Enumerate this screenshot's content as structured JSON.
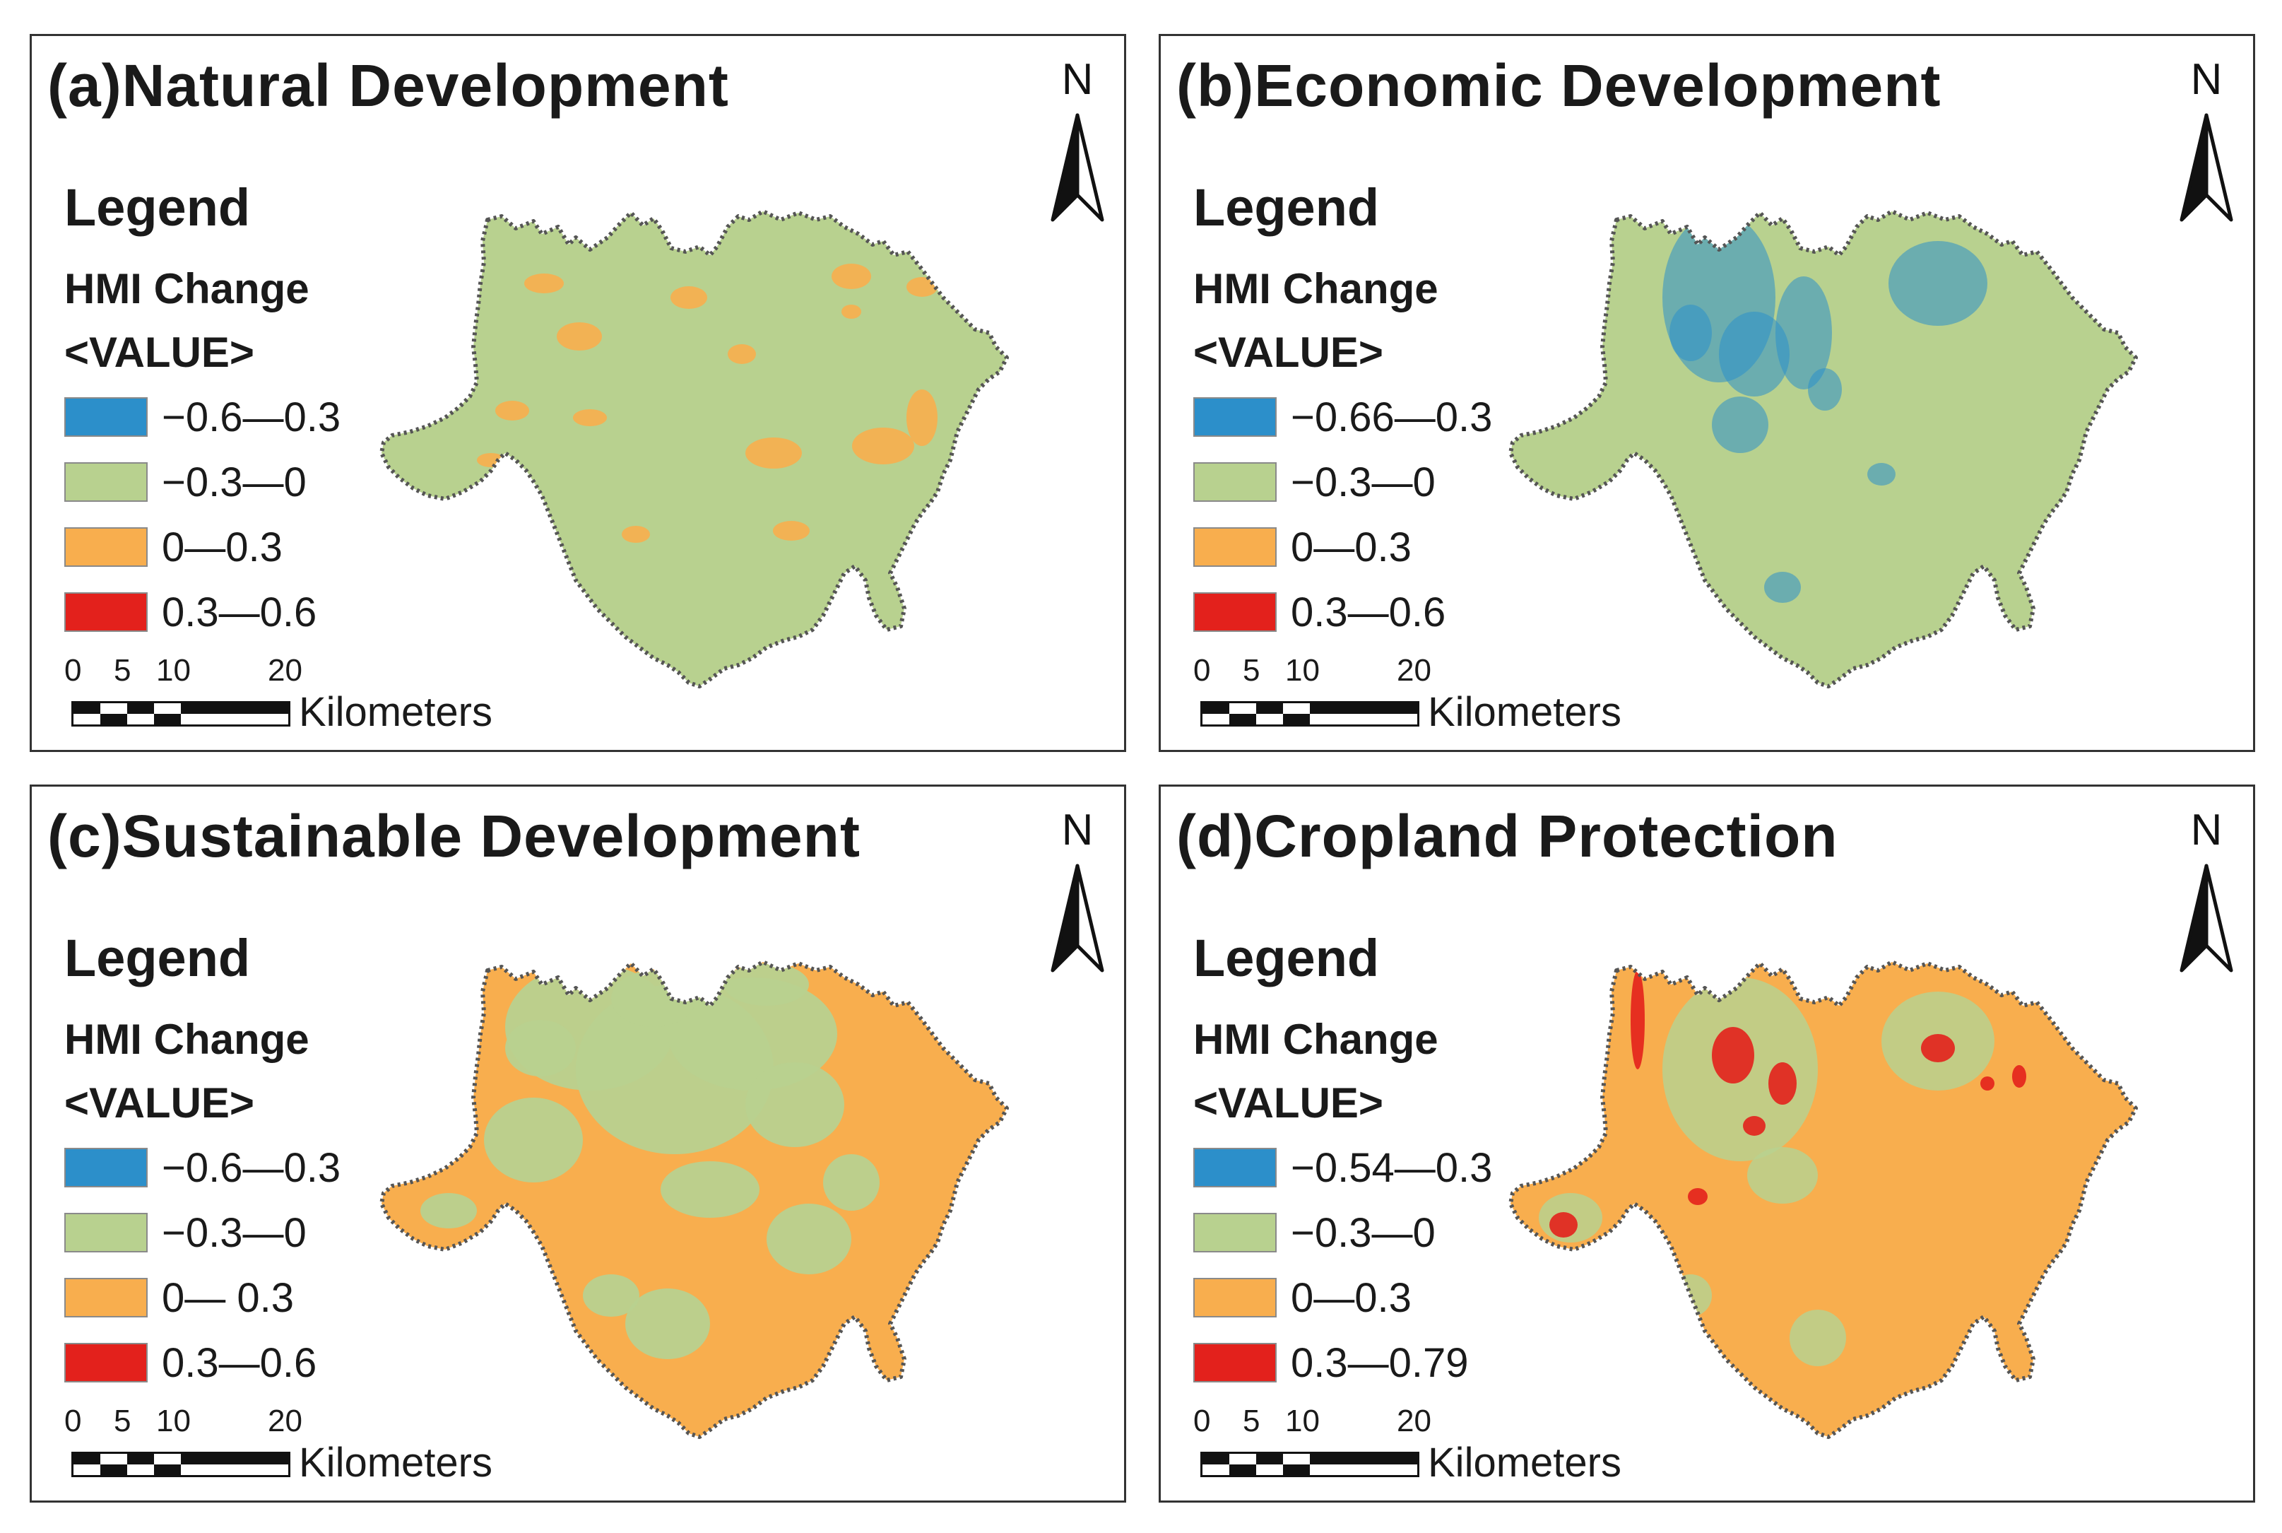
{
  "colors": {
    "class1": "#2c8fca",
    "class2": "#b8d18f",
    "class3": "#f8ae4e",
    "class4": "#e3211c",
    "outline": "#555555"
  },
  "panels": [
    {
      "title": "(a)Natural Development",
      "legend_title": "Legend",
      "legend_field": "HMI Change",
      "legend_value": "<VALUE>",
      "legend_items": [
        {
          "label": "−0.6—0.3",
          "color": "#2c8fca"
        },
        {
          "label": "−0.3—0",
          "color": "#b8d18f"
        },
        {
          "label": "0—0.3",
          "color": "#f8ae4e"
        },
        {
          "label": "0.3—0.6",
          "color": "#e3211c"
        }
      ],
      "scale_ticks": [
        "0",
        "5",
        "10",
        "20"
      ],
      "scale_unit": "Kilometers",
      "north_label": "N",
      "map_base": "class2",
      "map_overlay": "class3",
      "overlay_level": "low"
    },
    {
      "title": "(b)Economic Development",
      "legend_title": "Legend",
      "legend_field": "HMI Change",
      "legend_value": "<VALUE>",
      "legend_items": [
        {
          "label": "−0.66—0.3",
          "color": "#2c8fca"
        },
        {
          "label": "−0.3—0",
          "color": "#b8d18f"
        },
        {
          "label": "0—0.3",
          "color": "#f8ae4e"
        },
        {
          "label": "0.3—0.6",
          "color": "#e3211c"
        }
      ],
      "scale_ticks": [
        "0",
        "5",
        "10",
        "20"
      ],
      "scale_unit": "Kilometers",
      "north_label": "N",
      "map_base": "class2",
      "map_overlay": "class1",
      "overlay_level": "low"
    },
    {
      "title": "(c)Sustainable Development",
      "legend_title": "Legend",
      "legend_field": "HMI Change",
      "legend_value": "<VALUE>",
      "legend_items": [
        {
          "label": "−0.6—0.3",
          "color": "#2c8fca"
        },
        {
          "label": "−0.3—0",
          "color": "#b8d18f"
        },
        {
          "label": "0— 0.3",
          "color": "#f8ae4e"
        },
        {
          "label": "0.3—0.6",
          "color": "#e3211c"
        }
      ],
      "scale_ticks": [
        "0",
        "5",
        "10",
        "20"
      ],
      "scale_unit": "Kilometers",
      "north_label": "N",
      "map_base": "class3",
      "map_overlay": "class2",
      "overlay_level": "north"
    },
    {
      "title": "(d)Cropland Protection",
      "legend_title": "Legend",
      "legend_field": "HMI Change",
      "legend_value": "<VALUE>",
      "legend_items": [
        {
          "label": "−0.54—0.3",
          "color": "#2c8fca"
        },
        {
          "label": "−0.3—0",
          "color": "#b8d18f"
        },
        {
          "label": "0—0.3",
          "color": "#f8ae4e"
        },
        {
          "label": "0.3—0.79",
          "color": "#e3211c"
        }
      ],
      "scale_ticks": [
        "0",
        "5",
        "10",
        "20"
      ],
      "scale_unit": "Kilometers",
      "north_label": "N",
      "map_base": "class3",
      "map_overlay": "class4",
      "overlay_level": "urban"
    }
  ]
}
